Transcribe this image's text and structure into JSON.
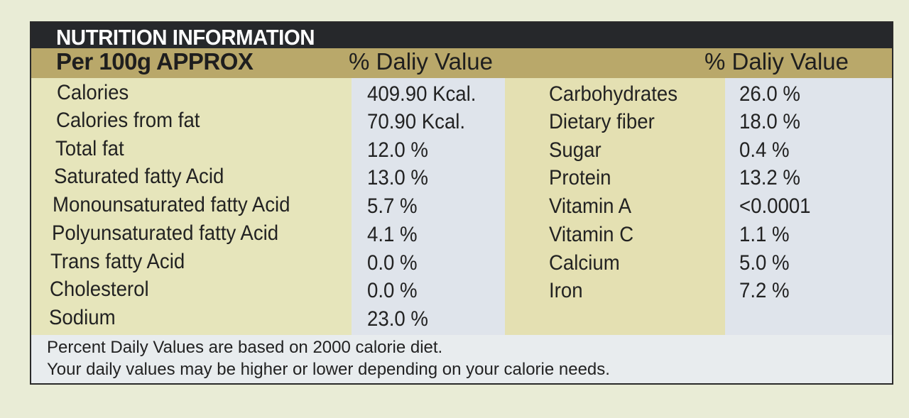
{
  "title": "NUTRITION INFORMATION",
  "header": {
    "per": "Per 100g APPROX",
    "dv_left": "% Daliy Value",
    "dv_right": "% Daliy Value"
  },
  "left_rows": [
    {
      "name": "Calories",
      "value": "409.90 Kcal."
    },
    {
      "name": "Calories from fat",
      "value": "70.90 Kcal."
    },
    {
      "name": "Total fat",
      "value": "12.0 %"
    },
    {
      "name": "Saturated fatty Acid",
      "value": "13.0 %"
    },
    {
      "name": "Monounsaturated fatty Acid",
      "value": "5.7 %"
    },
    {
      "name": "Polyunsaturated fatty Acid",
      "value": "4.1 %"
    },
    {
      "name": "Trans fatty Acid",
      "value": "0.0 %"
    },
    {
      "name": "Cholesterol",
      "value": "0.0 %"
    },
    {
      "name": "Sodium",
      "value": "23.0 %"
    }
  ],
  "right_rows": [
    {
      "name": "Carbohydrates",
      "value": "26.0 %"
    },
    {
      "name": "Dietary fiber",
      "value": "18.0 %"
    },
    {
      "name": "Sugar",
      "value": "0.4 %"
    },
    {
      "name": "Protein",
      "value": "13.2 %"
    },
    {
      "name": "Vitamin A",
      "value": "<0.0001"
    },
    {
      "name": "Vitamin C",
      "value": "1.1 %"
    },
    {
      "name": "Calcium",
      "value": "5.0 %"
    },
    {
      "name": "Iron",
      "value": "7.2 %"
    }
  ],
  "footer": {
    "line1": "Percent Daily Values are based on 2000 calorie diet.",
    "line2": "Your daily values may be higher or lower depending on your calorie needs."
  }
}
